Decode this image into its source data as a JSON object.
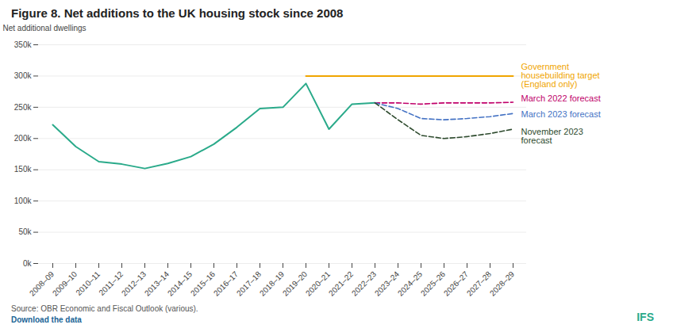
{
  "chart_data": {
    "type": "line",
    "title": "Figure 8. Net additions to the UK housing stock since 2008",
    "ylabel": "Net additional dwellings",
    "categories": [
      "2008–09",
      "2009–10",
      "2010–11",
      "2011–12",
      "2012–13",
      "2013–14",
      "2014–15",
      "2015–16",
      "2016–17",
      "2017–18",
      "2018–19",
      "2019–20",
      "2020–21",
      "2021–22",
      "2022–23",
      "2023–24",
      "2024–25",
      "2025–26",
      "2026–27",
      "2027–28",
      "2028–29"
    ],
    "series": [
      {
        "color": "#2aaa8a",
        "line_style": "solid",
        "values": [
          222000,
          187000,
          163000,
          159000,
          152000,
          160000,
          171000,
          191000,
          218000,
          248000,
          250000,
          288000,
          215000,
          255000,
          257000,
          null,
          null,
          null,
          null,
          null,
          null
        ]
      },
      {
        "name": "Government\nhousebuilding target\n(England only)",
        "color": "#f0a500",
        "line_style": "solid",
        "values": [
          null,
          null,
          null,
          null,
          null,
          null,
          null,
          null,
          null,
          null,
          null,
          300000,
          300000,
          300000,
          300000,
          300000,
          300000,
          300000,
          300000,
          300000,
          300000
        ]
      },
      {
        "name": "March 2022 forecast",
        "color": "#c0006a",
        "line_style": "dashed",
        "values": [
          null,
          null,
          null,
          null,
          null,
          null,
          null,
          null,
          null,
          null,
          null,
          null,
          null,
          null,
          257000,
          257000,
          255000,
          257000,
          257000,
          257000,
          258000
        ]
      },
      {
        "name": "March 2023 forecast",
        "color": "#4472c4",
        "line_style": "dashed",
        "values": [
          null,
          null,
          null,
          null,
          null,
          null,
          null,
          null,
          null,
          null,
          null,
          null,
          null,
          null,
          257000,
          248000,
          232000,
          230000,
          232000,
          235000,
          240000
        ]
      },
      {
        "name": "November 2023\nforecast",
        "color": "#2d4a2d",
        "line_style": "dashed",
        "values": [
          null,
          null,
          null,
          null,
          null,
          null,
          null,
          null,
          null,
          null,
          null,
          null,
          null,
          null,
          257000,
          230000,
          205000,
          200000,
          203000,
          208000,
          215000
        ]
      }
    ],
    "ylim": [
      0,
      350000
    ],
    "yticks": [
      {
        "value": 0,
        "label": "0k"
      },
      {
        "value": 50000,
        "label": "50k"
      },
      {
        "value": 100000,
        "label": "100k"
      },
      {
        "value": 150000,
        "label": "150k"
      },
      {
        "value": 200000,
        "label": "200k"
      },
      {
        "value": 250000,
        "label": "250k"
      },
      {
        "value": 300000,
        "label": "300k"
      },
      {
        "value": 350000,
        "label": "350k"
      }
    ],
    "grid": "y",
    "annotations": [
      "Source: OBR Economic and Fiscal Outlook (various).",
      "Download the data",
      "IFS"
    ]
  }
}
